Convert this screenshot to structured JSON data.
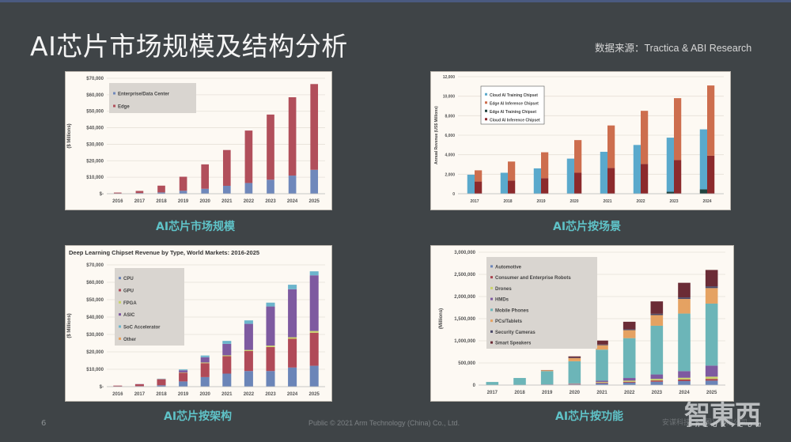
{
  "slide": {
    "title": "AI芯片市场规模及结构分析",
    "source": "数据来源：Tractica & ABI Research",
    "page_number": "6",
    "footer": "Public © 2021 Arm Technology (China) Co., Ltd.",
    "footer_right": "安谋科技（中国）有限公司",
    "watermark": "智東西",
    "watermark_url": "zhidx.com",
    "captions": [
      "AI芯片市场规模",
      "AI芯片按场景",
      "AI芯片按架构",
      "AI芯片按功能"
    ]
  },
  "colors": {
    "background": "#3f4447",
    "caption": "#5fc3c8",
    "panel": "#fdf9f3"
  },
  "chart_data": [
    {
      "id": "market-size",
      "type": "bar",
      "stacked": true,
      "title": "",
      "xlabel": "",
      "ylabel": "($ Millions)",
      "ylim": [
        0,
        70000
      ],
      "yticks": [
        "$-",
        "$10,000",
        "$20,000",
        "$30,000",
        "$40,000",
        "$50,000",
        "$60,000",
        "$70,000"
      ],
      "categories": [
        "2016",
        "2017",
        "2018",
        "2019",
        "2020",
        "2021",
        "2022",
        "2023",
        "2024",
        "2025"
      ],
      "series": [
        {
          "name": "Enterprise/Data Center",
          "color": "#6f88bb",
          "values": [
            200,
            400,
            800,
            1800,
            3000,
            4800,
            6500,
            8500,
            11000,
            14500
          ]
        },
        {
          "name": "Edge",
          "color": "#b14f5b",
          "values": [
            500,
            1300,
            4100,
            8500,
            14800,
            21700,
            31800,
            39500,
            47500,
            52000
          ]
        }
      ],
      "legend_position": "top-left",
      "grid": true
    },
    {
      "id": "by-scenario",
      "type": "bar",
      "stacked": true,
      "grouped": true,
      "title": "",
      "xlabel": "",
      "ylabel": "Annual Revenue (US$ Millions)",
      "ylim": [
        0,
        12000
      ],
      "yticks": [
        "0",
        "2,000",
        "4,000",
        "6,000",
        "8,000",
        "10,000",
        "12,000"
      ],
      "categories": [
        "2017",
        "2018",
        "2019",
        "2020",
        "2021",
        "2022",
        "2023",
        "2024"
      ],
      "series": [
        {
          "name": "Cloud AI Training Chipset",
          "color": "#5aa9cc",
          "group": "cloud",
          "values": [
            1950,
            2150,
            2600,
            3600,
            4300,
            5000,
            5550,
            6150
          ]
        },
        {
          "name": "Edge AI Inference Chipset",
          "color": "#cd6e4e",
          "group": "edge",
          "values": [
            1150,
            1950,
            2650,
            3350,
            4350,
            5450,
            6350,
            7200
          ]
        },
        {
          "name": "Edge AI Training Chipset",
          "color": "#22443f",
          "group": "cloud",
          "values": [
            0,
            0,
            0,
            0,
            0,
            0,
            200,
            450
          ]
        },
        {
          "name": "Cloud AI Inference Chipset",
          "color": "#8c2a2c",
          "group": "edge",
          "values": [
            1250,
            1350,
            1600,
            2150,
            2650,
            3050,
            3450,
            3900
          ]
        }
      ],
      "legend_position": "top-left",
      "grid": true
    },
    {
      "id": "by-architecture",
      "type": "bar",
      "stacked": true,
      "title": "Deep Learning Chipset Revenue by Type, World Markets: 2016-2025",
      "xlabel": "",
      "ylabel": "($ Millions)",
      "ylim": [
        0,
        70000
      ],
      "yticks": [
        "$-",
        "$10,000",
        "$20,000",
        "$30,000",
        "$40,000",
        "$50,000",
        "$60,000",
        "$70,000"
      ],
      "categories": [
        "2016",
        "2017",
        "2018",
        "2019",
        "2020",
        "2021",
        "2022",
        "2023",
        "2024",
        "2025"
      ],
      "series": [
        {
          "name": "CPU",
          "color": "#6b85b8",
          "values": [
            200,
            300,
            800,
            3000,
            5500,
            7500,
            9000,
            9000,
            11000,
            12000
          ]
        },
        {
          "name": "GPU",
          "color": "#b04a58",
          "values": [
            400,
            1100,
            3400,
            5000,
            8000,
            10000,
            11500,
            13800,
            16500,
            19000
          ]
        },
        {
          "name": "FPGA",
          "color": "#c9d36a",
          "values": [
            0,
            0,
            100,
            200,
            400,
            500,
            600,
            800,
            900,
            1000
          ]
        },
        {
          "name": "ASIC",
          "color": "#7e5aa0",
          "values": [
            0,
            100,
            200,
            1200,
            3000,
            6600,
            15000,
            22500,
            27600,
            32000
          ]
        },
        {
          "name": "SoC Accelerator",
          "color": "#6cb5cc",
          "values": [
            0,
            0,
            100,
            500,
            1000,
            1700,
            2000,
            2200,
            2600,
            2300
          ]
        },
        {
          "name": "Other",
          "color": "#e7a05a",
          "values": [
            0,
            0,
            0,
            0,
            0,
            0,
            0,
            0,
            0,
            0
          ]
        }
      ],
      "legend_position": "top-left",
      "grid": true
    },
    {
      "id": "by-function",
      "type": "bar",
      "stacked": true,
      "title": "",
      "xlabel": "",
      "ylabel": "(Millions)",
      "ylim": [
        0,
        3000000
      ],
      "yticks": [
        "0",
        "500,000",
        "1,000,000",
        "1,500,000",
        "2,000,000",
        "2,500,000",
        "3,000,000"
      ],
      "categories": [
        "2017",
        "2018",
        "2019",
        "2020",
        "2021",
        "2022",
        "2023",
        "2024",
        "2025"
      ],
      "series": [
        {
          "name": "Automotive",
          "color": "#6b85b8",
          "values": [
            0,
            0,
            5000,
            15000,
            40000,
            55000,
            75000,
            90000,
            100000
          ]
        },
        {
          "name": "Consumer and Enterprise Robots",
          "color": "#a8454f",
          "values": [
            0,
            0,
            3000,
            8000,
            15000,
            20000,
            30000,
            35000,
            40000
          ]
        },
        {
          "name": "Drones",
          "color": "#c9d36a",
          "values": [
            0,
            0,
            2000,
            5000,
            15000,
            25000,
            35000,
            40000,
            50000
          ]
        },
        {
          "name": "HMDs",
          "color": "#7e5aa0",
          "values": [
            0,
            0,
            5000,
            10000,
            30000,
            60000,
            100000,
            150000,
            250000
          ]
        },
        {
          "name": "Mobile Phones",
          "color": "#6cb5b8",
          "values": [
            70000,
            160000,
            300000,
            500000,
            700000,
            900000,
            1100000,
            1300000,
            1400000
          ]
        },
        {
          "name": "PCs/Tablets",
          "color": "#e5a262",
          "values": [
            0,
            0,
            20000,
            70000,
            100000,
            180000,
            240000,
            330000,
            350000
          ]
        },
        {
          "name": "Security Cameras",
          "color": "#4a4a6a",
          "values": [
            0,
            0,
            0,
            10000,
            15000,
            20000,
            30000,
            35000,
            40000
          ]
        },
        {
          "name": "Smart Speakers",
          "color": "#6b2c36",
          "values": [
            0,
            0,
            5000,
            30000,
            90000,
            170000,
            280000,
            330000,
            370000
          ]
        }
      ],
      "legend_position": "top-left",
      "grid": true
    }
  ]
}
